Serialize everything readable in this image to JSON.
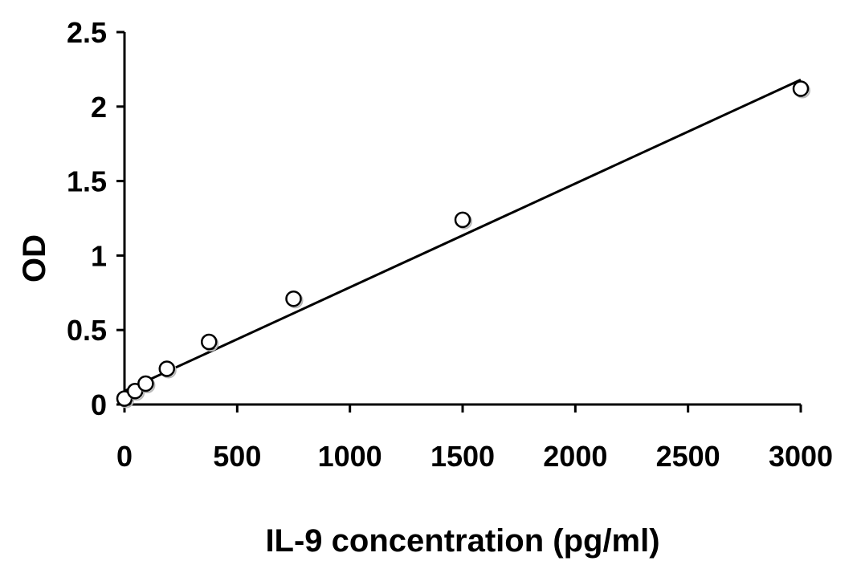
{
  "chart_data": {
    "type": "scatter",
    "xlabel": "IL-9 concentration (pg/ml)",
    "ylabel": "OD",
    "xlim": [
      0,
      3000
    ],
    "ylim": [
      0,
      2.5
    ],
    "x_ticks": [
      0,
      500,
      1000,
      1500,
      2000,
      2500,
      3000
    ],
    "y_ticks": [
      0,
      0.5,
      1,
      1.5,
      2,
      2.5
    ],
    "x_tick_labels": [
      "0",
      "500",
      "1000",
      "1500",
      "2000",
      "2500",
      "3000"
    ],
    "y_tick_labels": [
      "0",
      "0.5",
      "1",
      "1.5",
      "2",
      "2.5"
    ],
    "grid": false,
    "legend": "none",
    "series": [
      {
        "points": [
          {
            "x": 0,
            "y": 0.04
          },
          {
            "x": 47,
            "y": 0.09
          },
          {
            "x": 94,
            "y": 0.14
          },
          {
            "x": 188,
            "y": 0.24
          },
          {
            "x": 375,
            "y": 0.42
          },
          {
            "x": 750,
            "y": 0.71
          },
          {
            "x": 1500,
            "y": 1.24
          },
          {
            "x": 3000,
            "y": 2.12
          }
        ],
        "marker": "open-circle",
        "color": "#000000"
      }
    ],
    "trendline": {
      "type": "linear",
      "points": [
        {
          "x": 0,
          "y": 0.09
        },
        {
          "x": 3000,
          "y": 2.18
        }
      ],
      "color": "#000000"
    }
  }
}
